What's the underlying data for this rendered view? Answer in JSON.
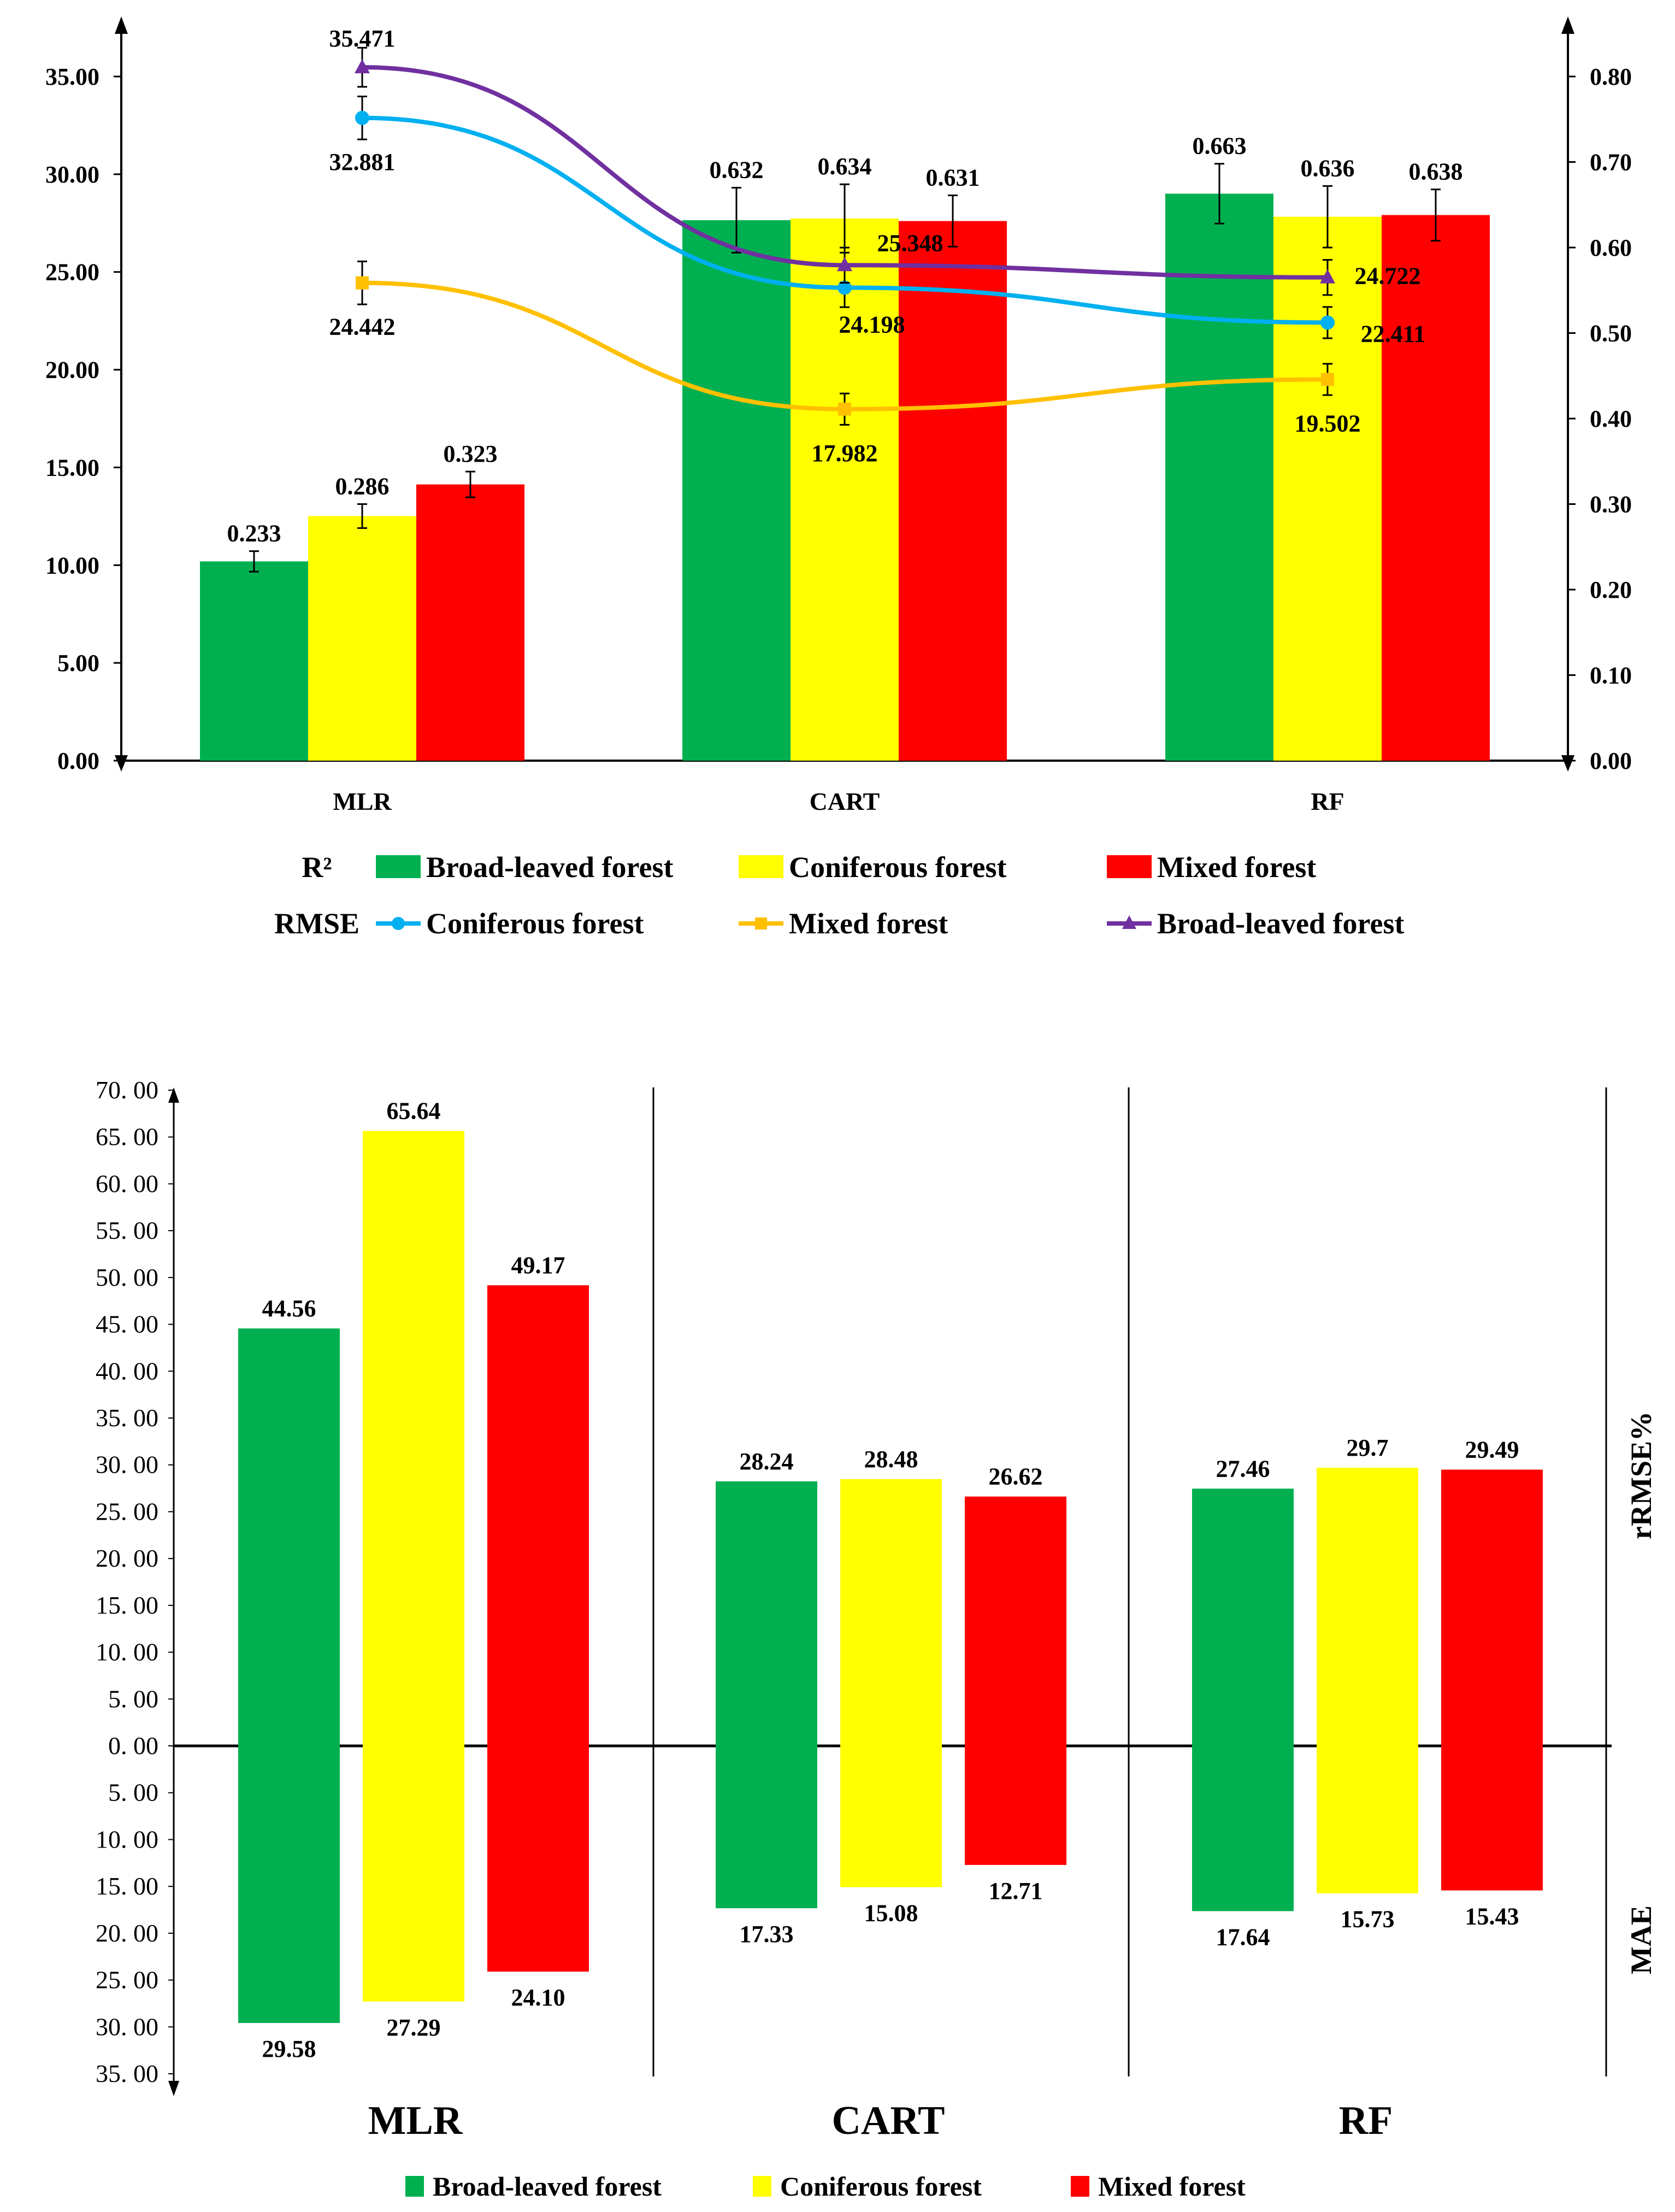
{
  "chart_data": [
    {
      "type": "bar",
      "categories": [
        "MLR",
        "CART",
        "RF"
      ],
      "left_axis": {
        "ylim": [
          0,
          35
        ],
        "ticks": [
          "0.00",
          "5.00",
          "10.00",
          "15.00",
          "20.00",
          "25.00",
          "30.00",
          "35.00"
        ]
      },
      "right_axis": {
        "ylim": [
          0,
          0.8
        ],
        "ticks": [
          "0.00",
          "0.10",
          "0.20",
          "0.30",
          "0.40",
          "0.50",
          "0.60",
          "0.70",
          "0.80"
        ]
      },
      "bar_group_label": "R²",
      "line_group_label": "RMSE",
      "bar_series": [
        {
          "name": "Broad-leaved forest",
          "color": "#00b050",
          "values": [
            0.233,
            0.632,
            0.663
          ],
          "labels": [
            "0.233",
            "0.632",
            "0.663"
          ],
          "errors": [
            0.012,
            0.038,
            0.035
          ]
        },
        {
          "name": "Coniferous forest",
          "color": "#ffff00",
          "values": [
            0.286,
            0.634,
            0.636
          ],
          "labels": [
            "0.286",
            "0.634",
            "0.636"
          ],
          "errors": [
            0.014,
            0.04,
            0.036
          ]
        },
        {
          "name": "Mixed forest",
          "color": "#ff0000",
          "values": [
            0.323,
            0.631,
            0.638
          ],
          "labels": [
            "0.323",
            "0.631",
            "0.638"
          ],
          "errors": [
            0.015,
            0.03,
            0.03
          ]
        }
      ],
      "line_series": [
        {
          "name": "Coniferous forest",
          "color": "#00b0f0",
          "marker": "circle",
          "values": [
            32.881,
            24.198,
            22.411
          ],
          "labels": [
            "32.881",
            "24.198",
            "22.411"
          ],
          "errors": [
            1.1,
            1.0,
            0.8
          ]
        },
        {
          "name": "Mixed forest",
          "color": "#ffc000",
          "marker": "square",
          "values": [
            24.442,
            17.982,
            19.502
          ],
          "labels": [
            "24.442",
            "17.982",
            "19.502"
          ],
          "errors": [
            1.1,
            0.8,
            0.8
          ]
        },
        {
          "name": "Broad-leaved forest",
          "color": "#7030a0",
          "marker": "triangle",
          "values": [
            35.471,
            25.348,
            24.722
          ],
          "labels": [
            "35.471",
            "25.348",
            "24.722"
          ],
          "errors": [
            1.0,
            0.9,
            0.9
          ]
        }
      ],
      "legend_row1": [
        "Broad-leaved forest",
        "Coniferous forest",
        "Mixed forest"
      ],
      "legend_row2": [
        "Coniferous forest",
        "Mixed forest",
        "Broad-leaved forest"
      ]
    },
    {
      "type": "bar",
      "categories": [
        "MLR",
        "CART",
        "RF"
      ],
      "ylim_top": [
        0,
        70
      ],
      "ylim_bottom": [
        0,
        35
      ],
      "ticks_top": [
        "0. 00",
        "5. 00",
        "10. 00",
        "15. 00",
        "20. 00",
        "25. 00",
        "30. 00",
        "35. 00",
        "40. 00",
        "45. 00",
        "50. 00",
        "55. 00",
        "60. 00",
        "65. 00",
        "70. 00"
      ],
      "ticks_bottom": [
        "5. 00",
        "10. 00",
        "15. 00",
        "20. 00",
        "25. 00",
        "30. 00",
        "35. 00"
      ],
      "upper_label": "rRMSE%",
      "lower_label": "MAE",
      "series": [
        {
          "name": "Broad-leaved forest",
          "color": "#00b050",
          "rrmse": [
            44.56,
            28.24,
            27.46
          ],
          "rrmse_labels": [
            "44.56",
            "28.24",
            "27.46"
          ],
          "mae": [
            29.58,
            17.33,
            17.64
          ],
          "mae_labels": [
            "29.58",
            "17.33",
            "17.64"
          ]
        },
        {
          "name": "Coniferous forest",
          "color": "#ffff00",
          "rrmse": [
            65.64,
            28.48,
            29.7
          ],
          "rrmse_labels": [
            "65.64",
            "28.48",
            "29.7"
          ],
          "mae": [
            27.29,
            15.08,
            15.73
          ],
          "mae_labels": [
            "27.29",
            "15.08",
            "15.73"
          ]
        },
        {
          "name": "Mixed forest",
          "color": "#ff0000",
          "rrmse": [
            49.17,
            26.62,
            29.49
          ],
          "rrmse_labels": [
            "49.17",
            "26.62",
            "29.49"
          ],
          "mae": [
            24.1,
            12.71,
            15.43
          ],
          "mae_labels": [
            "24.10",
            "12.71",
            "15.43"
          ]
        }
      ]
    }
  ]
}
